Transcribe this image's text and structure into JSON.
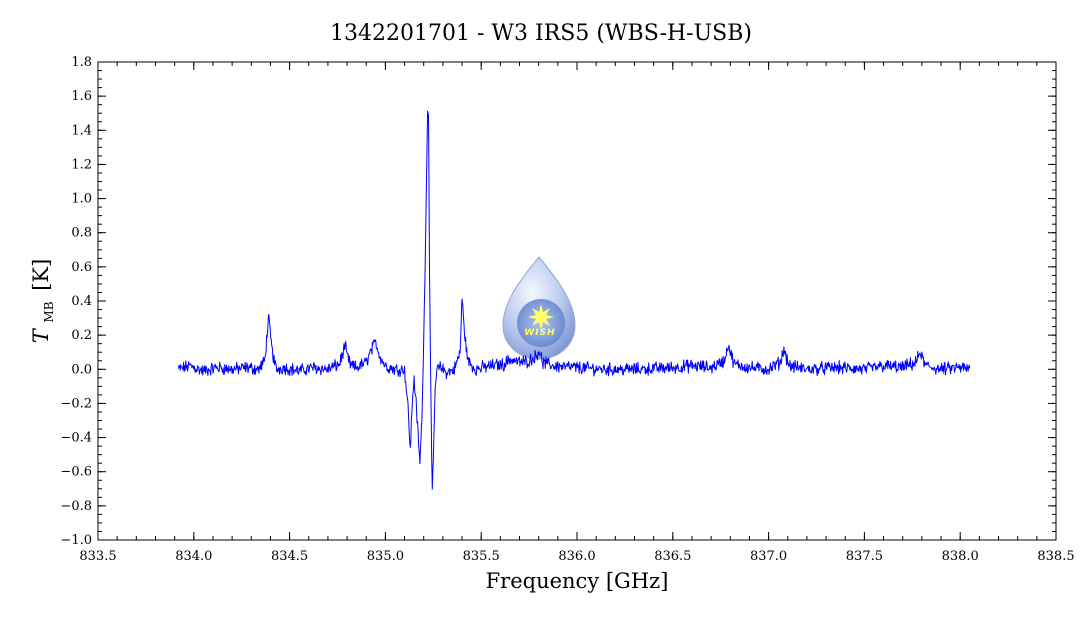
{
  "chart_data": {
    "type": "line",
    "title": "1342201701 - W3 IRS5 (WBS-H-USB)",
    "xlabel": "Frequency [GHz]",
    "ylabel_main": "T",
    "ylabel_sub": "MB",
    "ylabel_unit": "[K]",
    "xlim": [
      833.5,
      838.5
    ],
    "ylim": [
      -1.0,
      1.8
    ],
    "xticks": [
      833.5,
      834.0,
      834.5,
      835.0,
      835.5,
      836.0,
      836.5,
      837.0,
      837.5,
      838.0,
      838.5
    ],
    "xtick_labels": [
      "833.5",
      "834.0",
      "834.5",
      "835.0",
      "835.5",
      "836.0",
      "836.5",
      "837.0",
      "837.5",
      "838.0",
      "838.5"
    ],
    "yticks": [
      -1.0,
      -0.8,
      -0.6,
      -0.4,
      -0.2,
      0.0,
      0.2,
      0.4,
      0.6,
      0.8,
      1.0,
      1.2,
      1.4,
      1.6,
      1.8
    ],
    "ytick_labels": [
      "−1.0",
      "−0.8",
      "−0.6",
      "−0.4",
      "−0.2",
      "0.0",
      "0.2",
      "0.4",
      "0.6",
      "0.8",
      "1.0",
      "1.2",
      "1.4",
      "1.6",
      "1.8"
    ],
    "grid": false,
    "series": [
      {
        "color": "#0000ff",
        "x": [
          833.92,
          833.98,
          834.05,
          834.12,
          834.2,
          834.28,
          834.34,
          834.37,
          834.39,
          834.41,
          834.43,
          834.47,
          834.55,
          834.62,
          834.7,
          834.76,
          834.79,
          834.8,
          834.82,
          834.85,
          834.9,
          834.93,
          834.95,
          834.97,
          835.0,
          835.05,
          835.1,
          835.12,
          835.13,
          835.14,
          835.15,
          835.16,
          835.18,
          835.19,
          835.2,
          835.21,
          835.22,
          835.225,
          835.23,
          835.24,
          835.245,
          835.25,
          835.26,
          835.27,
          835.29,
          835.32,
          835.36,
          835.39,
          835.4,
          835.41,
          835.43,
          835.47,
          835.55,
          835.62,
          835.65,
          835.7,
          835.75,
          835.79,
          835.8,
          835.82,
          835.88,
          836.0,
          836.15,
          836.3,
          836.5,
          836.6,
          836.7,
          836.77,
          836.79,
          836.8,
          836.82,
          836.9,
          837.0,
          837.06,
          837.08,
          837.09,
          837.11,
          837.2,
          837.35,
          837.5,
          837.6,
          837.7,
          837.77,
          837.79,
          837.8,
          837.82,
          837.9,
          838.0,
          838.05
        ],
        "y": [
          0.0,
          0.02,
          -0.01,
          0.01,
          0.0,
          0.01,
          0.0,
          0.05,
          0.3,
          0.1,
          0.0,
          0.01,
          -0.01,
          0.01,
          0.0,
          0.03,
          0.14,
          0.08,
          0.02,
          0.01,
          0.04,
          0.12,
          0.16,
          0.08,
          0.02,
          0.0,
          0.0,
          -0.25,
          -0.48,
          -0.2,
          -0.05,
          -0.2,
          -0.55,
          -0.3,
          0.15,
          0.8,
          1.5,
          1.52,
          0.6,
          -0.4,
          -0.74,
          -0.55,
          -0.1,
          0.0,
          0.01,
          -0.02,
          0.0,
          0.1,
          0.42,
          0.25,
          0.05,
          0.0,
          0.02,
          0.03,
          0.06,
          0.04,
          0.05,
          0.08,
          0.12,
          0.04,
          0.02,
          0.01,
          0.0,
          0.0,
          0.01,
          0.02,
          0.01,
          0.05,
          0.15,
          0.1,
          0.03,
          0.01,
          0.0,
          0.04,
          0.12,
          0.08,
          0.02,
          0.0,
          0.01,
          0.0,
          0.02,
          0.01,
          0.04,
          0.1,
          0.07,
          0.02,
          0.0,
          0.01,
          0.0
        ]
      }
    ]
  },
  "logo": {
    "text": "WISH",
    "colors": {
      "drop_top": "#eef2ff",
      "drop_bottom": "#7f9ad6",
      "star": "#ffff66"
    }
  }
}
